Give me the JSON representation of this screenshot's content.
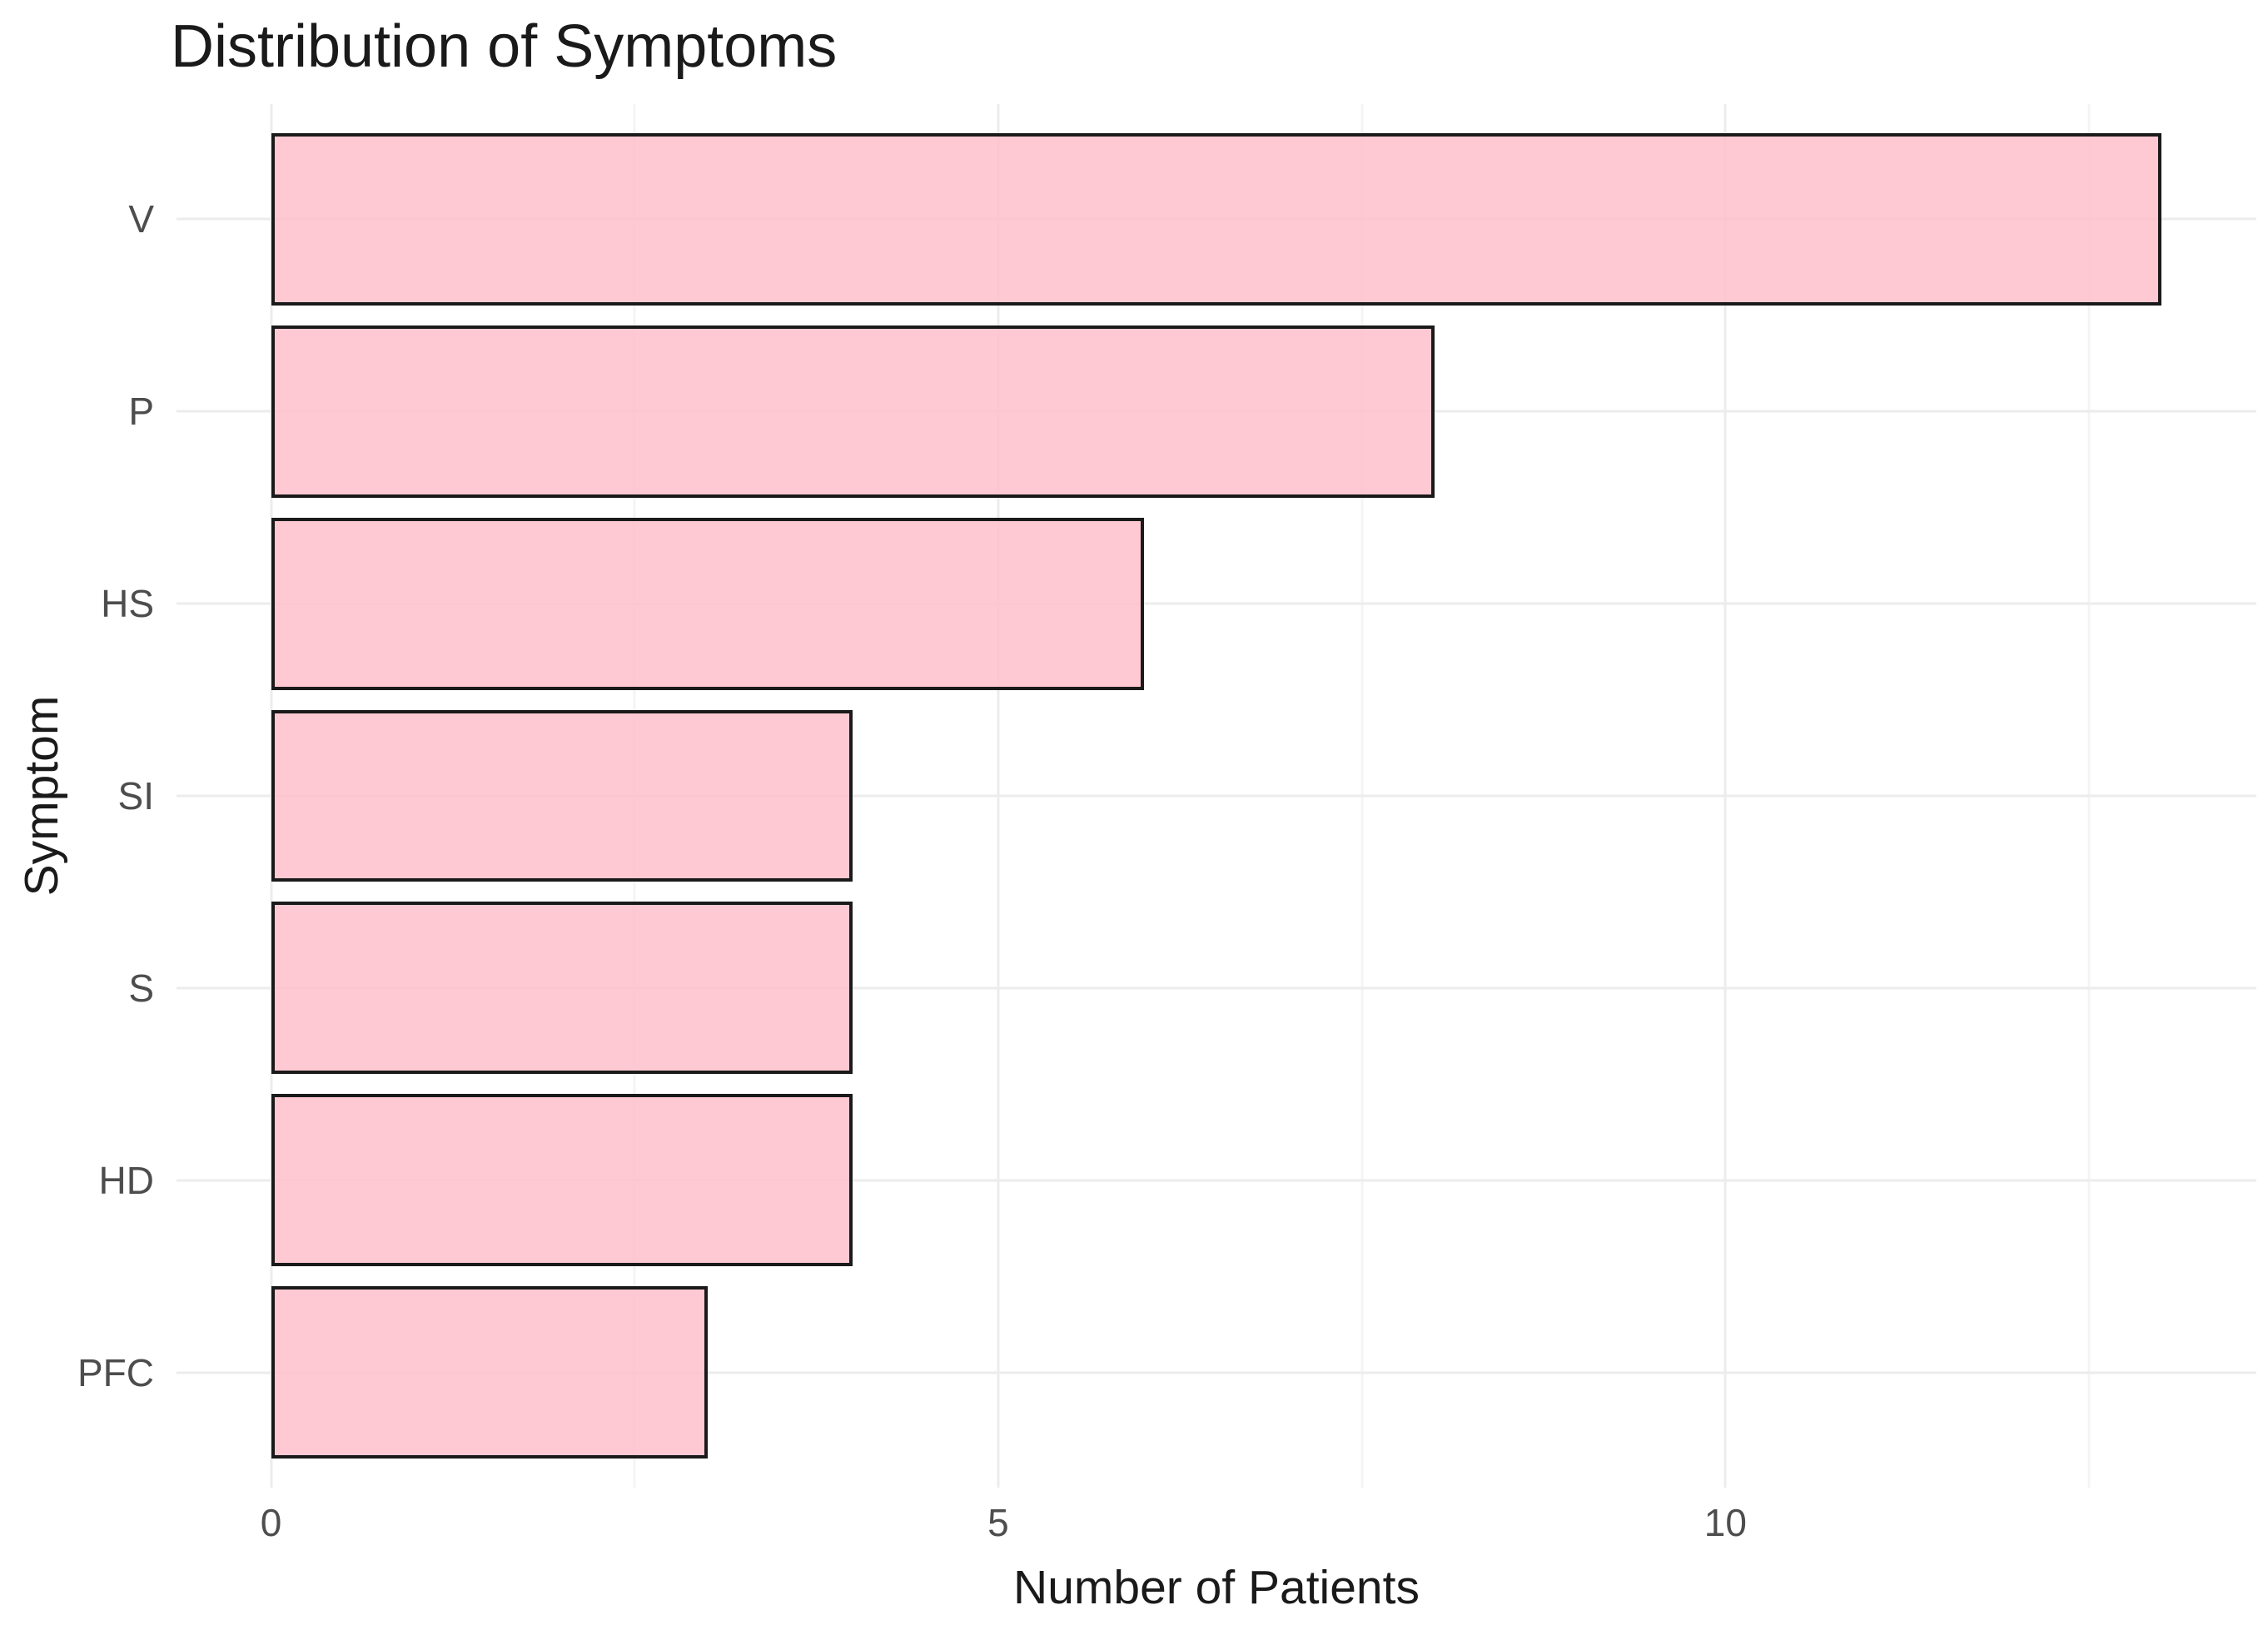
{
  "chart_data": {
    "type": "bar",
    "orientation": "horizontal",
    "title": "Distribution of Symptoms",
    "xlabel": "Number of Patients",
    "ylabel": "Symptom",
    "categories": [
      "V",
      "P",
      "HS",
      "SI",
      "S",
      "HD",
      "PFC"
    ],
    "values": [
      13,
      8,
      6,
      4,
      4,
      4,
      3
    ],
    "x_ticks": [
      0,
      5,
      10
    ],
    "x_minor_gridlines": [
      2.5,
      7.5,
      12.5
    ],
    "xlim": [
      0,
      13
    ],
    "axis_pad_units": 0.65,
    "grid": "on",
    "legend": "none",
    "bar_width_fraction": 0.9,
    "colors": {
      "bar_fill": "rgba(255,192,203,0.85)",
      "bar_border": "#1a1a1a",
      "grid_major": "#ececec",
      "grid_minor": "#f4f4f4",
      "tick_label": "#4d4d4d",
      "title_text": "#1a1a1a",
      "background": "#ffffff"
    }
  }
}
